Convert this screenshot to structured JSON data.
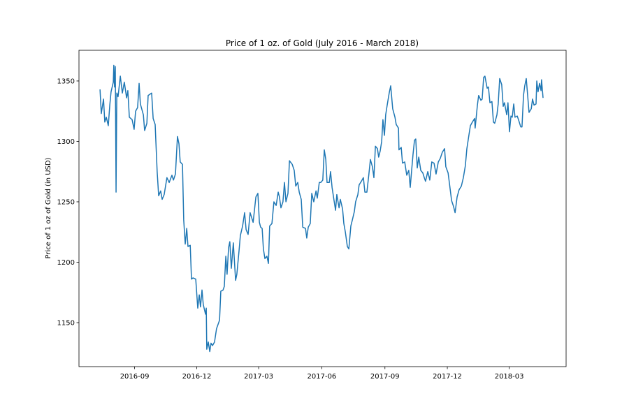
{
  "chart_data": {
    "type": "line",
    "title": "Price of 1 oz. of Gold (July 2016 - March 2018)",
    "y_label": "Price of 1 oz of Gold (in USD)",
    "color": "#1f77b4",
    "xlim": [
      2016.445,
      2018.389
    ],
    "ylim": [
      1113.6,
      1375.4
    ],
    "xticks": [
      {
        "value": 2016.667,
        "label": "2016-09"
      },
      {
        "value": 2016.915,
        "label": "2016-12"
      },
      {
        "value": 2017.162,
        "label": "2017-03"
      },
      {
        "value": 2017.414,
        "label": "2017-06"
      },
      {
        "value": 2017.666,
        "label": "2017-09"
      },
      {
        "value": 2017.915,
        "label": "2017-12"
      },
      {
        "value": 2018.162,
        "label": "2018-03"
      }
    ],
    "yticks": [
      1150,
      1200,
      1250,
      1300,
      1350
    ],
    "x": [
      2016.529,
      2016.534,
      2016.543,
      2016.548,
      2016.554,
      2016.562,
      2016.568,
      2016.573,
      2016.582,
      2016.584,
      2016.587,
      2016.59,
      2016.593,
      2016.596,
      2016.601,
      2016.61,
      2016.618,
      2016.626,
      2016.635,
      2016.64,
      2016.646,
      2016.657,
      2016.665,
      2016.671,
      2016.679,
      2016.685,
      2016.69,
      2016.702,
      2016.707,
      2016.716,
      2016.721,
      2016.735,
      2016.741,
      2016.749,
      2016.757,
      2016.763,
      2016.771,
      2016.777,
      2016.785,
      2016.796,
      2016.805,
      2016.816,
      2016.822,
      2016.83,
      2016.838,
      2016.844,
      2016.849,
      2016.858,
      2016.863,
      2016.869,
      2016.875,
      2016.88,
      2016.889,
      2016.894,
      2016.9,
      2016.911,
      2016.919,
      2016.925,
      2016.93,
      2016.936,
      2016.941,
      2016.95,
      2016.953,
      2016.955,
      2016.961,
      2016.967,
      2016.972,
      2016.978,
      2016.986,
      2016.994,
      2017.006,
      2017.011,
      2017.02,
      2017.025,
      2017.031,
      2017.036,
      2017.042,
      2017.047,
      2017.053,
      2017.061,
      2017.07,
      2017.075,
      2017.084,
      2017.089,
      2017.098,
      2017.106,
      2017.112,
      2017.12,
      2017.128,
      2017.14,
      2017.151,
      2017.159,
      2017.165,
      2017.17,
      2017.176,
      2017.181,
      2017.187,
      2017.195,
      2017.201,
      2017.206,
      2017.215,
      2017.223,
      2017.232,
      2017.24,
      2017.245,
      2017.251,
      2017.259,
      2017.265,
      2017.271,
      2017.279,
      2017.285,
      2017.296,
      2017.304,
      2017.31,
      2017.318,
      2017.324,
      2017.332,
      2017.338,
      2017.349,
      2017.354,
      2017.36,
      2017.368,
      2017.374,
      2017.382,
      2017.391,
      2017.396,
      2017.404,
      2017.41,
      2017.418,
      2017.424,
      2017.43,
      2017.435,
      2017.444,
      2017.449,
      2017.455,
      2017.463,
      2017.469,
      2017.474,
      2017.483,
      2017.488,
      2017.497,
      2017.502,
      2017.508,
      2017.516,
      2017.522,
      2017.53,
      2017.536,
      2017.544,
      2017.549,
      2017.558,
      2017.563,
      2017.572,
      2017.58,
      2017.586,
      2017.594,
      2017.602,
      2017.608,
      2017.616,
      2017.622,
      2017.628,
      2017.636,
      2017.641,
      2017.647,
      2017.653,
      2017.658,
      2017.664,
      2017.669,
      2017.675,
      2017.683,
      2017.689,
      2017.697,
      2017.706,
      2017.711,
      2017.72,
      2017.722,
      2017.731,
      2017.736,
      2017.745,
      2017.753,
      2017.761,
      2017.767,
      2017.773,
      2017.778,
      2017.784,
      2017.789,
      2017.795,
      2017.801,
      2017.809,
      2017.817,
      2017.823,
      2017.828,
      2017.837,
      2017.845,
      2017.853,
      2017.862,
      2017.87,
      2017.879,
      2017.887,
      2017.895,
      2017.904,
      2017.909,
      2017.918,
      2017.923,
      2017.932,
      2017.94,
      2017.946,
      2017.954,
      2017.962,
      2017.971,
      2017.979,
      2017.987,
      2017.993,
      2018.001,
      2018.007,
      2018.015,
      2018.024,
      2018.026,
      2018.035,
      2018.04,
      2018.049,
      2018.054,
      2018.06,
      2018.065,
      2018.074,
      2018.079,
      2018.085,
      2018.093,
      2018.099,
      2018.104,
      2018.113,
      2018.118,
      2018.124,
      2018.132,
      2018.138,
      2018.143,
      2018.152,
      2018.157,
      2018.163,
      2018.169,
      2018.174,
      2018.18,
      2018.185,
      2018.194,
      2018.199,
      2018.208,
      2018.213,
      2018.219,
      2018.224,
      2018.23,
      2018.236,
      2018.241,
      2018.25,
      2018.255,
      2018.261,
      2018.269,
      2018.272,
      2018.277,
      2018.283,
      2018.289,
      2018.291,
      2018.297
    ],
    "values": [
      1343,
      1323,
      1335,
      1316,
      1320,
      1313,
      1330,
      1341,
      1349,
      1363,
      1345,
      1362,
      1258,
      1340,
      1337,
      1354,
      1340,
      1349,
      1336,
      1342,
      1320,
      1318,
      1310,
      1325,
      1328,
      1348,
      1331,
      1322,
      1309,
      1315,
      1338,
      1340,
      1319,
      1314,
      1275,
      1255,
      1259,
      1252,
      1256,
      1270,
      1266,
      1272,
      1268,
      1273,
      1304,
      1298,
      1283,
      1281,
      1235,
      1215,
      1228,
      1213,
      1214,
      1186,
      1187,
      1186,
      1162,
      1173,
      1163,
      1177,
      1165,
      1157,
      1162,
      1128,
      1134,
      1126,
      1133,
      1131,
      1134,
      1145,
      1152,
      1176,
      1177,
      1180,
      1205,
      1190,
      1212,
      1217,
      1195,
      1216,
      1185,
      1190,
      1210,
      1222,
      1230,
      1241,
      1227,
      1223,
      1241,
      1233,
      1254,
      1257,
      1233,
      1229,
      1228,
      1211,
      1203,
      1205,
      1199,
      1230,
      1232,
      1250,
      1247,
      1258,
      1254,
      1245,
      1250,
      1266,
      1250,
      1257,
      1284,
      1281,
      1276,
      1263,
      1266,
      1258,
      1252,
      1229,
      1228,
      1220,
      1229,
      1232,
      1257,
      1250,
      1259,
      1253,
      1266,
      1266,
      1268,
      1293,
      1285,
      1266,
      1266,
      1275,
      1262,
      1251,
      1243,
      1256,
      1245,
      1252,
      1244,
      1232,
      1225,
      1213,
      1211,
      1230,
      1235,
      1242,
      1250,
      1256,
      1264,
      1267,
      1270,
      1258,
      1258,
      1273,
      1285,
      1279,
      1270,
      1296,
      1294,
      1287,
      1292,
      1300,
      1318,
      1305,
      1322,
      1330,
      1340,
      1346,
      1327,
      1320,
      1314,
      1311,
      1293,
      1295,
      1282,
      1283,
      1272,
      1276,
      1262,
      1277,
      1289,
      1301,
      1302,
      1278,
      1287,
      1276,
      1274,
      1270,
      1267,
      1275,
      1268,
      1283,
      1282,
      1273,
      1283,
      1286,
      1291,
      1294,
      1279,
      1274,
      1266,
      1251,
      1246,
      1241,
      1254,
      1260,
      1263,
      1270,
      1280,
      1294,
      1305,
      1313,
      1316,
      1319,
      1311,
      1330,
      1338,
      1334,
      1335,
      1353,
      1354,
      1344,
      1345,
      1332,
      1333,
      1316,
      1315,
      1322,
      1331,
      1352,
      1347,
      1329,
      1332,
      1322,
      1332,
      1308,
      1321,
      1320,
      1331,
      1320,
      1321,
      1318,
      1312,
      1312,
      1338,
      1346,
      1352,
      1337,
      1324,
      1327,
      1335,
      1330,
      1331,
      1350,
      1341,
      1348,
      1342,
      1351,
      1336
    ]
  }
}
